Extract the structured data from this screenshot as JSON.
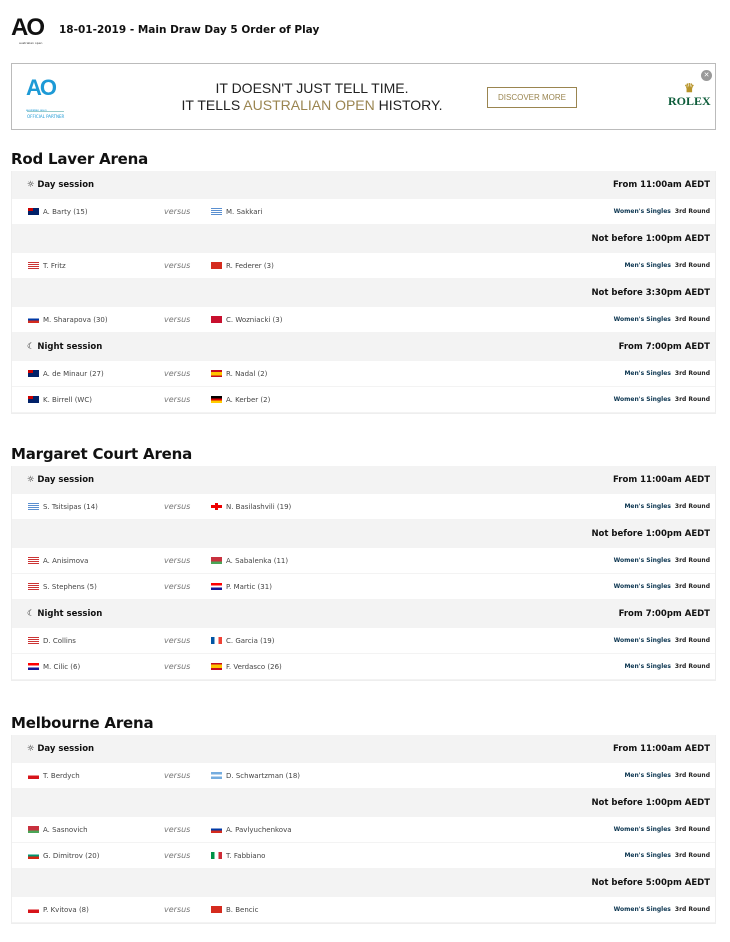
{
  "header": {
    "logo_text": "AO",
    "logo_sub": "australian open",
    "title": "18-01-2019 - Main Draw Day 5 Order of Play"
  },
  "ad": {
    "logo_text": "AO",
    "logo_sub": "australian open",
    "partner": "OFFICIAL PARTNER",
    "line1": "IT DOESN'T JUST TELL TIME.",
    "line2_pre": "IT TELLS ",
    "line2_gold": "AUSTRALIAN OPEN",
    "line2_post": " HISTORY.",
    "button": "DISCOVER MORE",
    "brand": "ROLEX",
    "close_icon": "close-icon",
    "accent": "#9a8550"
  },
  "versus": "versus",
  "courts": [
    {
      "name": "Rod Laver Arena",
      "rows": [
        {
          "type": "session",
          "icon": "sun-icon",
          "label": "Day session",
          "time": "From 11:00am AEDT"
        },
        {
          "type": "match",
          "p1": "A. Barty (15)",
          "f1": "aus",
          "p2": "M. Sakkari",
          "f2": "gre",
          "event": "Women's Singles",
          "round": "3rd Round"
        },
        {
          "type": "session",
          "label": "",
          "time": "Not before 1:00pm AEDT"
        },
        {
          "type": "match",
          "p1": "T. Fritz",
          "f1": "usa",
          "p2": "R. Federer (3)",
          "f2": "sui",
          "event": "Men's Singles",
          "round": "3rd Round"
        },
        {
          "type": "session",
          "label": "",
          "time": "Not before 3:30pm AEDT"
        },
        {
          "type": "match",
          "p1": "M. Sharapova (30)",
          "f1": "rus",
          "p2": "C. Wozniacki (3)",
          "f2": "den",
          "event": "Women's Singles",
          "round": "3rd Round"
        },
        {
          "type": "session",
          "icon": "moon-icon",
          "label": "Night session",
          "time": "From 7:00pm AEDT"
        },
        {
          "type": "match",
          "p1": "A. de Minaur (27)",
          "f1": "aus",
          "p2": "R. Nadal (2)",
          "f2": "esp",
          "event": "Men's Singles",
          "round": "3rd Round"
        },
        {
          "type": "match",
          "p1": "K. Birrell (WC)",
          "f1": "aus",
          "p2": "A. Kerber (2)",
          "f2": "ger",
          "event": "Women's Singles",
          "round": "3rd Round"
        }
      ]
    },
    {
      "name": "Margaret Court Arena",
      "rows": [
        {
          "type": "session",
          "icon": "sun-icon",
          "label": "Day session",
          "time": "From 11:00am AEDT"
        },
        {
          "type": "match",
          "p1": "S. Tsitsipas (14)",
          "f1": "gre",
          "p2": "N. Basilashvili (19)",
          "f2": "geo",
          "event": "Men's Singles",
          "round": "3rd Round"
        },
        {
          "type": "session",
          "label": "",
          "time": "Not before 1:00pm AEDT"
        },
        {
          "type": "match",
          "p1": "A. Anisimova",
          "f1": "usa",
          "p2": "A. Sabalenka (11)",
          "f2": "blr",
          "event": "Women's Singles",
          "round": "3rd Round"
        },
        {
          "type": "match",
          "p1": "S. Stephens (5)",
          "f1": "usa",
          "p2": "P. Martic (31)",
          "f2": "cro",
          "event": "Women's Singles",
          "round": "3rd Round"
        },
        {
          "type": "session",
          "icon": "moon-icon",
          "label": "Night session",
          "time": "From 7:00pm AEDT"
        },
        {
          "type": "match",
          "p1": "D. Collins",
          "f1": "usa",
          "p2": "C. Garcia (19)",
          "f2": "fra",
          "event": "Women's Singles",
          "round": "3rd Round"
        },
        {
          "type": "match",
          "p1": "M. Cilic (6)",
          "f1": "cro",
          "p2": "F. Verdasco (26)",
          "f2": "esp",
          "event": "Men's Singles",
          "round": "3rd Round"
        }
      ]
    },
    {
      "name": "Melbourne Arena",
      "rows": [
        {
          "type": "session",
          "icon": "sun-icon",
          "label": "Day session",
          "time": "From 11:00am AEDT"
        },
        {
          "type": "match",
          "p1": "T. Berdych",
          "f1": "cze",
          "p2": "D. Schwartzman (18)",
          "f2": "arg",
          "event": "Men's Singles",
          "round": "3rd Round"
        },
        {
          "type": "session",
          "label": "",
          "time": "Not before 1:00pm AEDT"
        },
        {
          "type": "match",
          "p1": "A. Sasnovich",
          "f1": "blr",
          "p2": "A. Pavlyuchenkova",
          "f2": "rus",
          "event": "Women's Singles",
          "round": "3rd Round"
        },
        {
          "type": "match",
          "p1": "G. Dimitrov (20)",
          "f1": "bul",
          "p2": "T. Fabbiano",
          "f2": "ita",
          "event": "Men's Singles",
          "round": "3rd Round"
        },
        {
          "type": "session",
          "label": "",
          "time": "Not before 5:00pm AEDT"
        },
        {
          "type": "match",
          "p1": "P. Kvitova (8)",
          "f1": "cze",
          "p2": "B. Bencic",
          "f2": "sui",
          "event": "Women's Singles",
          "round": "3rd Round"
        }
      ]
    }
  ]
}
